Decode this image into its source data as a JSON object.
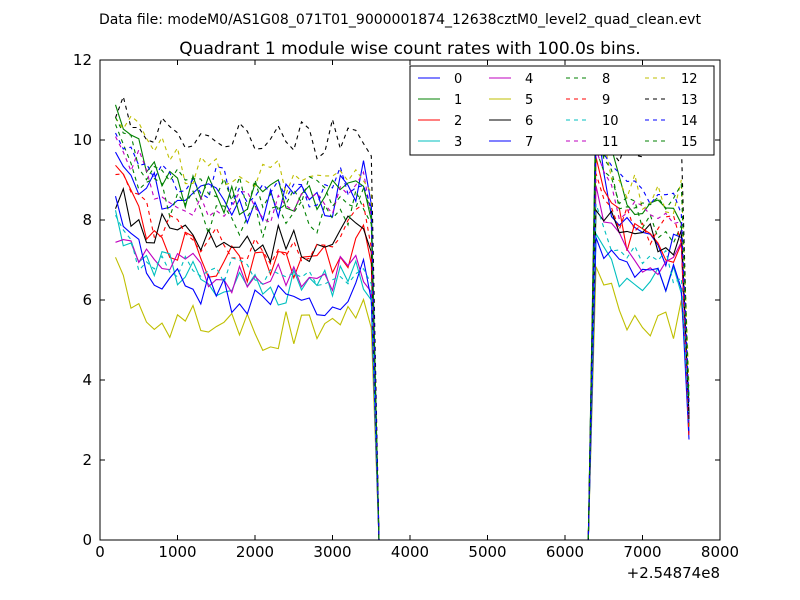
{
  "figure": {
    "suptitle": "Data file: modeM0/AS1G08_071T01_9000001874_12638cztM0_level2_quad_clean.evt",
    "offset_label": "+2.54874e8"
  },
  "chart_data": {
    "type": "line",
    "title": "Quadrant 1 module wise count rates with 100.0s bins.",
    "xlabel": "",
    "ylabel": "",
    "xlim": [
      0,
      8000
    ],
    "ylim": [
      0,
      12
    ],
    "x_offset": 254874000,
    "xticks": [
      0,
      1000,
      2000,
      3000,
      4000,
      5000,
      6000,
      7000,
      8000
    ],
    "yticks": [
      0,
      2,
      4,
      6,
      8,
      10,
      12
    ],
    "xtick_labels": [
      "0",
      "1000",
      "2000",
      "3000",
      "4000",
      "5000",
      "6000",
      "7000",
      "8000"
    ],
    "ytick_labels": [
      "0",
      "2",
      "4",
      "6",
      "8",
      "10",
      "12"
    ],
    "grid": false,
    "legend_location": "top-right",
    "legend_columns": 4,
    "gti": [
      [
        200,
        3400
      ],
      [
        6400,
        7600
      ]
    ],
    "zero_span": [
      3600,
      6300
    ],
    "bin": 100,
    "series": [
      {
        "name": "0",
        "color": "#0000ff",
        "dash": "solid",
        "level": 8.4,
        "start": 9.5,
        "end": 9.0,
        "pseed": 0.3,
        "post_level": 7.2,
        "post_start": 10.3
      },
      {
        "name": "1",
        "color": "#008000",
        "dash": "solid",
        "level": 8.5,
        "start": 10.8,
        "end": 8.6,
        "pseed": 1.1,
        "post_level": 8.3,
        "post_start": 11.0
      },
      {
        "name": "2",
        "color": "#ff0000",
        "dash": "solid",
        "level": 6.9,
        "start": 9.2,
        "end": 7.5,
        "pseed": 2.2,
        "post_level": 7.3,
        "post_start": 10.0
      },
      {
        "name": "3",
        "color": "#00bfbf",
        "dash": "solid",
        "level": 6.3,
        "start": 8.2,
        "end": 6.6,
        "pseed": 3.7,
        "post_level": 6.6,
        "post_start": 7.6
      },
      {
        "name": "4",
        "color": "#bf00bf",
        "dash": "solid",
        "level": 6.6,
        "start": 7.5,
        "end": 6.8,
        "pseed": 4.4,
        "post_level": 7.0,
        "post_start": 8.4
      },
      {
        "name": "5",
        "color": "#bfbf00",
        "dash": "solid",
        "level": 5.2,
        "start": 6.8,
        "end": 5.9,
        "pseed": 5.9,
        "post_level": 5.5,
        "post_start": 6.9
      },
      {
        "name": "6",
        "color": "#000000",
        "dash": "solid",
        "level": 7.4,
        "start": 8.6,
        "end": 7.8,
        "pseed": 6.1,
        "post_level": 7.5,
        "post_start": 8.7
      },
      {
        "name": "7",
        "color": "#0000ff",
        "dash": "solid",
        "level": 6.0,
        "start": 8.4,
        "end": 6.6,
        "pseed": 7.3,
        "post_level": 6.4,
        "post_start": 8.0
      },
      {
        "name": "8",
        "color": "#008000",
        "dash": "dash",
        "level": 8.0,
        "start": 10.0,
        "end": 8.5,
        "pseed": 8.8,
        "post_level": 7.9,
        "post_start": 10.2
      },
      {
        "name": "9",
        "color": "#ff0000",
        "dash": "dash",
        "level": 7.3,
        "start": 9.3,
        "end": 7.9,
        "pseed": 9.2,
        "post_level": 7.6,
        "post_start": 9.6
      },
      {
        "name": "10",
        "color": "#00bfbf",
        "dash": "dash",
        "level": 6.6,
        "start": 7.8,
        "end": 7.0,
        "pseed": 10.5,
        "post_level": 6.8,
        "post_start": 8.5
      },
      {
        "name": "11",
        "color": "#bf00bf",
        "dash": "dash",
        "level": 8.4,
        "start": 10.1,
        "end": 8.7,
        "pseed": 11.4,
        "post_level": 8.1,
        "post_start": 9.7
      },
      {
        "name": "12",
        "color": "#bfbf00",
        "dash": "dash",
        "level": 9.1,
        "start": 10.9,
        "end": 9.3,
        "pseed": 12.6,
        "post_level": 8.6,
        "post_start": 10.3
      },
      {
        "name": "13",
        "color": "#000000",
        "dash": "dash",
        "level": 10.0,
        "start": 11.0,
        "end": 10.2,
        "pseed": 13.1,
        "post_level": 9.6,
        "post_start": 10.7
      },
      {
        "name": "14",
        "color": "#0000ff",
        "dash": "dash",
        "level": 8.8,
        "start": 10.2,
        "end": 8.9,
        "pseed": 14.9,
        "post_level": 8.4,
        "post_start": 10.0
      },
      {
        "name": "15",
        "color": "#008000",
        "dash": "dash",
        "level": 8.7,
        "start": 10.4,
        "end": 8.8,
        "pseed": 15.5,
        "post_level": 8.4,
        "post_start": 10.1
      }
    ]
  }
}
